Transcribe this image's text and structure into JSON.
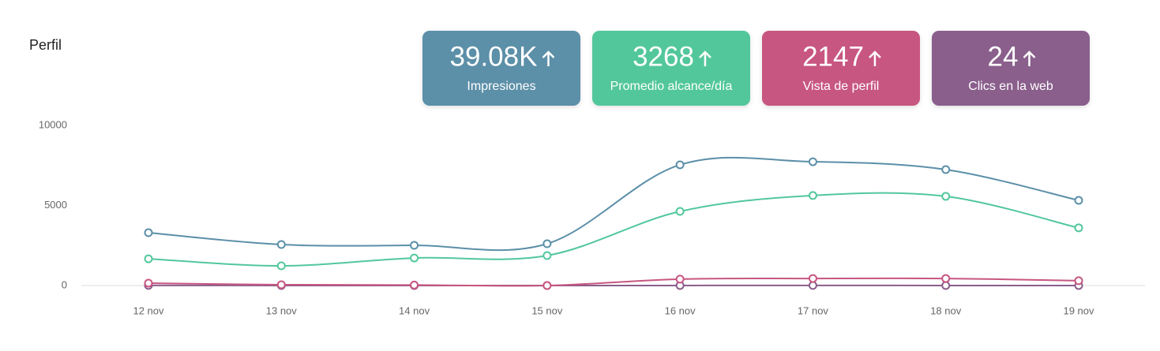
{
  "cards": [
    {
      "value": "39.08K",
      "label": "Impresiones",
      "color": "#5b8fa8"
    },
    {
      "value": "3268",
      "label": "Promedio alcance/día",
      "color": "#52c79c"
    },
    {
      "value": "2147",
      "label": "Vista de perfil",
      "color": "#c75680"
    },
    {
      "value": "24",
      "label": "Clics en la web",
      "color": "#8a5e8c"
    }
  ],
  "chart_data": {
    "type": "line",
    "title": "Perfil",
    "categories": [
      "12 nov",
      "13 nov",
      "14 nov",
      "15 nov",
      "16 nov",
      "17 nov",
      "18 nov",
      "19 nov"
    ],
    "series": [
      {
        "name": "Impresiones",
        "color": "#5b8fa8",
        "values": [
          3300,
          2560,
          2510,
          2610,
          7540,
          7730,
          7240,
          5320
        ]
      },
      {
        "name": "Promedio alcance/día",
        "color": "#52c79c",
        "values": [
          1670,
          1230,
          1720,
          1870,
          4630,
          5620,
          5570,
          3600
        ]
      },
      {
        "name": "Vista de perfil",
        "color": "#c75680",
        "values": [
          150,
          50,
          30,
          0,
          400,
          440,
          440,
          300
        ]
      },
      {
        "name": "Clics en la web",
        "color": "#8a5e8c",
        "values": [
          4,
          3,
          3,
          3,
          3,
          4,
          3,
          3
        ]
      }
    ],
    "ylim": [
      0,
      10000
    ],
    "yticks": [
      0,
      5000,
      10000
    ],
    "grid": false
  }
}
